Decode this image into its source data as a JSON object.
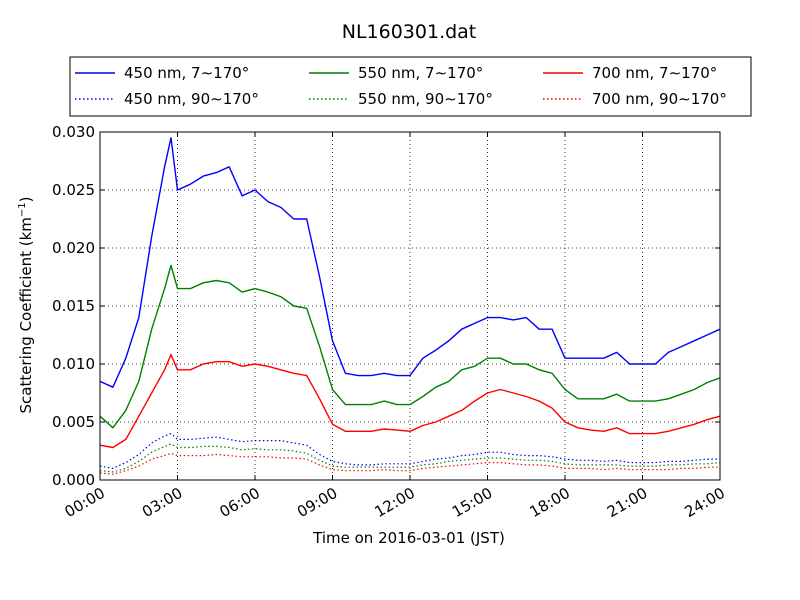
{
  "chart_data": {
    "type": "line",
    "title": "NL160301.dat",
    "xlabel": "Time on 2016-03-01 (JST)",
    "ylabel_main": "Scattering Coefficient (km",
    "ylabel_exp": "−1",
    "ylabel_close": ")",
    "ylim": [
      0.0,
      0.03
    ],
    "xlim_hours": [
      0,
      24
    ],
    "x_ticks": [
      {
        "hour": 0,
        "label": "00:00"
      },
      {
        "hour": 3,
        "label": "03:00"
      },
      {
        "hour": 6,
        "label": "06:00"
      },
      {
        "hour": 9,
        "label": "09:00"
      },
      {
        "hour": 12,
        "label": "12:00"
      },
      {
        "hour": 15,
        "label": "15:00"
      },
      {
        "hour": 18,
        "label": "18:00"
      },
      {
        "hour": 21,
        "label": "21:00"
      },
      {
        "hour": 24,
        "label": "24:00"
      }
    ],
    "y_ticks": [
      {
        "value": 0.0,
        "label": "0.000"
      },
      {
        "value": 0.005,
        "label": "0.005"
      },
      {
        "value": 0.01,
        "label": "0.010"
      },
      {
        "value": 0.015,
        "label": "0.015"
      },
      {
        "value": 0.02,
        "label": "0.020"
      },
      {
        "value": 0.025,
        "label": "0.025"
      },
      {
        "value": 0.03,
        "label": "0.030"
      }
    ],
    "grid": true,
    "legend_position": "top",
    "x_hours": [
      0,
      0.5,
      1,
      1.5,
      2,
      2.5,
      2.75,
      3,
      3.5,
      4,
      4.5,
      5,
      5.5,
      6,
      6.5,
      7,
      7.5,
      8,
      8.5,
      9,
      9.5,
      10,
      10.5,
      11,
      11.5,
      12,
      12.5,
      13,
      13.5,
      14,
      14.5,
      15,
      15.5,
      16,
      16.5,
      17,
      17.5,
      18,
      18.5,
      19,
      19.5,
      20,
      20.5,
      21,
      21.5,
      22,
      22.5,
      23,
      23.5,
      24
    ],
    "series": [
      {
        "name": "450 nm, 7∼170°",
        "color": "#0000ff",
        "style": "solid",
        "values": [
          0.0085,
          0.008,
          0.0105,
          0.014,
          0.021,
          0.027,
          0.0295,
          0.025,
          0.0255,
          0.0262,
          0.0265,
          0.027,
          0.0245,
          0.025,
          0.024,
          0.0235,
          0.0225,
          0.0225,
          0.0175,
          0.012,
          0.0092,
          0.009,
          0.009,
          0.0092,
          0.009,
          0.009,
          0.0105,
          0.0112,
          0.012,
          0.013,
          0.0135,
          0.014,
          0.014,
          0.0138,
          0.014,
          0.013,
          0.013,
          0.0105,
          0.0105,
          0.0105,
          0.0105,
          0.011,
          0.01,
          0.01,
          0.01,
          0.011,
          0.0115,
          0.012,
          0.0125,
          0.013
        ]
      },
      {
        "name": "550 nm, 7∼170°",
        "color": "#008000",
        "style": "solid",
        "values": [
          0.0055,
          0.0045,
          0.006,
          0.0085,
          0.013,
          0.0165,
          0.0185,
          0.0165,
          0.0165,
          0.017,
          0.0172,
          0.017,
          0.0162,
          0.0165,
          0.0162,
          0.0158,
          0.015,
          0.0148,
          0.0115,
          0.0078,
          0.0065,
          0.0065,
          0.0065,
          0.0068,
          0.0065,
          0.0065,
          0.0072,
          0.008,
          0.0085,
          0.0095,
          0.0098,
          0.0105,
          0.0105,
          0.01,
          0.01,
          0.0095,
          0.0092,
          0.0078,
          0.007,
          0.007,
          0.007,
          0.0074,
          0.0068,
          0.0068,
          0.0068,
          0.007,
          0.0074,
          0.0078,
          0.0084,
          0.0088
        ]
      },
      {
        "name": "700 nm, 7∼170°",
        "color": "#ff0000",
        "style": "solid",
        "values": [
          0.003,
          0.0028,
          0.0035,
          0.0055,
          0.0075,
          0.0095,
          0.0108,
          0.0095,
          0.0095,
          0.01,
          0.0102,
          0.0102,
          0.0098,
          0.01,
          0.0098,
          0.0095,
          0.0092,
          0.009,
          0.007,
          0.0048,
          0.0042,
          0.0042,
          0.0042,
          0.0044,
          0.0043,
          0.0042,
          0.0047,
          0.005,
          0.0055,
          0.006,
          0.0068,
          0.0075,
          0.0078,
          0.0075,
          0.0072,
          0.0068,
          0.0062,
          0.005,
          0.0045,
          0.0043,
          0.0042,
          0.0045,
          0.004,
          0.004,
          0.004,
          0.0042,
          0.0045,
          0.0048,
          0.0052,
          0.0055
        ]
      },
      {
        "name": "450 nm, 90∼170°",
        "color": "#0000ff",
        "style": "dotted",
        "values": [
          0.0012,
          0.001,
          0.0015,
          0.0022,
          0.0032,
          0.0038,
          0.004,
          0.0035,
          0.0035,
          0.0036,
          0.0037,
          0.0035,
          0.0033,
          0.0034,
          0.0034,
          0.0034,
          0.0032,
          0.003,
          0.0022,
          0.0016,
          0.0014,
          0.0013,
          0.0013,
          0.0014,
          0.0014,
          0.0014,
          0.0016,
          0.0018,
          0.0019,
          0.0021,
          0.0022,
          0.0024,
          0.0024,
          0.0022,
          0.0021,
          0.0021,
          0.002,
          0.0018,
          0.0017,
          0.0017,
          0.0016,
          0.0017,
          0.0015,
          0.0015,
          0.0015,
          0.0016,
          0.0016,
          0.0017,
          0.0018,
          0.0018
        ]
      },
      {
        "name": "550 nm, 90∼170°",
        "color": "#008000",
        "style": "dotted",
        "values": [
          0.0008,
          0.0007,
          0.001,
          0.0016,
          0.0024,
          0.0029,
          0.0031,
          0.0028,
          0.0028,
          0.0029,
          0.0029,
          0.0028,
          0.0026,
          0.0027,
          0.0026,
          0.0026,
          0.0025,
          0.0023,
          0.0017,
          0.0012,
          0.0011,
          0.0011,
          0.0011,
          0.0011,
          0.0011,
          0.0011,
          0.0013,
          0.0014,
          0.0016,
          0.0017,
          0.0018,
          0.0019,
          0.0019,
          0.0018,
          0.0017,
          0.0017,
          0.0016,
          0.0014,
          0.0013,
          0.0013,
          0.0013,
          0.0013,
          0.0012,
          0.0012,
          0.0012,
          0.0013,
          0.0013,
          0.0014,
          0.0014,
          0.0015
        ]
      },
      {
        "name": "700 nm, 90∼170°",
        "color": "#ff0000",
        "style": "dotted",
        "values": [
          0.0006,
          0.0005,
          0.0008,
          0.0012,
          0.0018,
          0.0021,
          0.0023,
          0.0021,
          0.0021,
          0.0021,
          0.0022,
          0.0021,
          0.002,
          0.002,
          0.002,
          0.0019,
          0.0019,
          0.0018,
          0.0013,
          0.0009,
          0.0008,
          0.0008,
          0.0008,
          0.0009,
          0.0008,
          0.0008,
          0.001,
          0.0011,
          0.0012,
          0.0013,
          0.0014,
          0.0015,
          0.0015,
          0.0014,
          0.0013,
          0.0013,
          0.0012,
          0.001,
          0.001,
          0.001,
          0.0009,
          0.001,
          0.0009,
          0.0009,
          0.0009,
          0.0009,
          0.001,
          0.001,
          0.0011,
          0.0011
        ]
      }
    ]
  }
}
